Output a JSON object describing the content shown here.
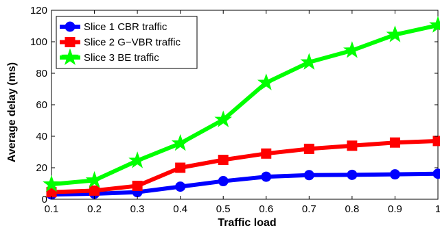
{
  "chart_data": {
    "type": "line",
    "title": "",
    "xlabel": "Traffic load",
    "ylabel": "Average delay (ms)",
    "x": [
      0.1,
      0.2,
      0.3,
      0.4,
      0.5,
      0.6,
      0.7,
      0.8,
      0.9,
      1.0
    ],
    "x_tick_labels": [
      "0.1",
      "0.2",
      "0.3",
      "0.4",
      "0.5",
      "0.6",
      "0.7",
      "0.8",
      "0.9",
      "1"
    ],
    "y_ticks": [
      0,
      20,
      40,
      60,
      80,
      100,
      120
    ],
    "xlim": [
      0.1,
      1.0
    ],
    "ylim": [
      0,
      120
    ],
    "grid": false,
    "legend_position": "top-left",
    "series": [
      {
        "name": "Slice 1 CBR traffic",
        "color": "#0000ff",
        "marker": "circle",
        "values": [
          3,
          3.5,
          4.5,
          8,
          11.5,
          14.3,
          15.3,
          15.5,
          15.8,
          16.2
        ]
      },
      {
        "name": "Slice 2 G−VBR traffic",
        "color": "#ff0000",
        "marker": "square",
        "values": [
          4.5,
          5.5,
          8.5,
          20,
          25,
          29,
          32,
          34,
          36,
          37
        ]
      },
      {
        "name": "Slice 3 BE traffic",
        "color": "#00ff00",
        "marker": "star",
        "values": [
          9.5,
          12,
          24.5,
          35.5,
          50.5,
          74,
          87,
          94.5,
          104.5,
          110.5
        ]
      }
    ]
  }
}
